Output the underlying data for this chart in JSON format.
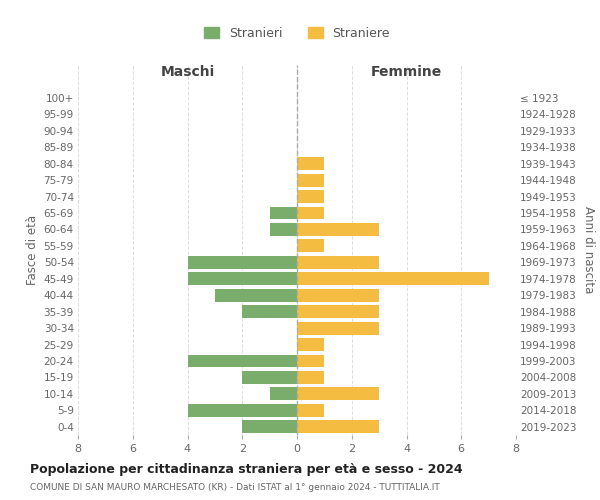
{
  "age_groups": [
    "0-4",
    "5-9",
    "10-14",
    "15-19",
    "20-24",
    "25-29",
    "30-34",
    "35-39",
    "40-44",
    "45-49",
    "50-54",
    "55-59",
    "60-64",
    "65-69",
    "70-74",
    "75-79",
    "80-84",
    "85-89",
    "90-94",
    "95-99",
    "100+"
  ],
  "birth_years": [
    "2019-2023",
    "2014-2018",
    "2009-2013",
    "2004-2008",
    "1999-2003",
    "1994-1998",
    "1989-1993",
    "1984-1988",
    "1979-1983",
    "1974-1978",
    "1969-1973",
    "1964-1968",
    "1959-1963",
    "1954-1958",
    "1949-1953",
    "1944-1948",
    "1939-1943",
    "1934-1938",
    "1929-1933",
    "1924-1928",
    "≤ 1923"
  ],
  "maschi": [
    2,
    4,
    1,
    2,
    4,
    0,
    0,
    2,
    3,
    4,
    4,
    0,
    1,
    1,
    0,
    0,
    0,
    0,
    0,
    0,
    0
  ],
  "femmine": [
    3,
    1,
    3,
    1,
    1,
    1,
    3,
    3,
    3,
    7,
    3,
    1,
    3,
    1,
    1,
    1,
    1,
    0,
    0,
    0,
    0
  ],
  "color_maschi": "#7aad6b",
  "color_femmine": "#f5bc42",
  "title": "Popolazione per cittadinanza straniera per età e sesso - 2024",
  "subtitle": "COMUNE DI SAN MAURO MARCHESATO (KR) - Dati ISTAT al 1° gennaio 2024 - TUTTITALIA.IT",
  "xlabel_left": "Maschi",
  "xlabel_right": "Femmine",
  "ylabel_left": "Fasce di età",
  "ylabel_right": "Anni di nascita",
  "legend_maschi": "Stranieri",
  "legend_femmine": "Straniere",
  "xlim": 8,
  "background_color": "#ffffff",
  "grid_color": "#dddddd"
}
